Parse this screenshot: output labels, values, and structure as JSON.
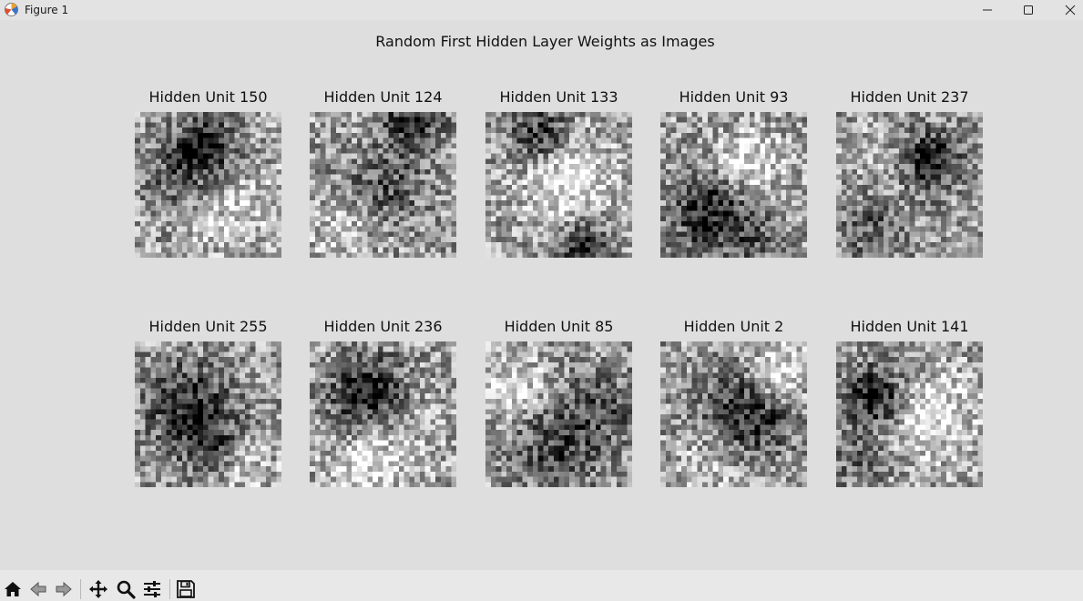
{
  "window": {
    "title": "Figure 1",
    "controls": [
      "minimize",
      "maximize",
      "close"
    ]
  },
  "figure": {
    "title": "Random First Hidden Layer Weights as Images",
    "colormap": "gray",
    "image_size": [
      28,
      28
    ],
    "panels": [
      {
        "title": "Hidden Unit 150"
      },
      {
        "title": "Hidden Unit 124"
      },
      {
        "title": "Hidden Unit 133"
      },
      {
        "title": "Hidden Unit 93"
      },
      {
        "title": "Hidden Unit 237"
      },
      {
        "title": "Hidden Unit 255"
      },
      {
        "title": "Hidden Unit 236"
      },
      {
        "title": "Hidden Unit 85"
      },
      {
        "title": "Hidden Unit 2"
      },
      {
        "title": "Hidden Unit 141"
      }
    ]
  },
  "toolbar": {
    "buttons": [
      "home-icon",
      "back-icon",
      "forward-icon",
      "pan-icon",
      "zoom-icon",
      "configure-subplots-icon",
      "save-icon"
    ]
  }
}
